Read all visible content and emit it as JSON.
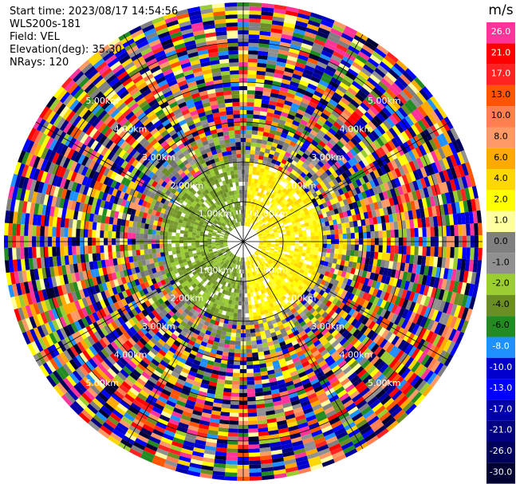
{
  "header": {
    "start_time": "Start time: 2023/08/17 14:54:56",
    "instrument": "WLS200s-181",
    "field": "Field: VEL",
    "elevation": "Elevation(deg): 35.30",
    "nrays": "NRays: 120"
  },
  "chart_data": {
    "type": "heatmap",
    "subtype": "polar-ppi",
    "title": "",
    "field": "VEL",
    "elevation_deg": 35.3,
    "nrays": 120,
    "range_rings_km": [
      1.0,
      2.0,
      3.0,
      4.0,
      5.0
    ],
    "range_ring_labels": [
      "1.00km",
      "2.00km",
      "3.00km",
      "4.00km",
      "5.00km"
    ],
    "radial_lines_deg": [
      0,
      30,
      60,
      90,
      120,
      150,
      180,
      210,
      240,
      270,
      300,
      330
    ],
    "max_range_km": 6.0,
    "colorbar": {
      "unit": "m/s",
      "tick_labels": [
        "26.0",
        "21.0",
        "17.0",
        "13.0",
        "10.0",
        "8.0",
        "6.0",
        "4.0",
        "2.0",
        "1.0",
        "0.0",
        "-1.0",
        "-2.0",
        "-4.0",
        "-6.0",
        "-8.0",
        "-10.0",
        "-13.0",
        "-17.0",
        "-21.0",
        "-26.0",
        "-30.0"
      ],
      "colors": [
        "#ff3399",
        "#ff0000",
        "#ff2222",
        "#ff5500",
        "#ff7f50",
        "#ff9966",
        "#ffaa00",
        "#ffd700",
        "#ffff00",
        "#ffffa0",
        "#808080",
        "#909090",
        "#9acd32",
        "#6b8e23",
        "#228b22",
        "#1e90ff",
        "#0000cd",
        "#0000ff",
        "#0000aa",
        "#000080",
        "#00005a",
        "#000033"
      ]
    },
    "near_field_summary": {
      "east_half_sign": "positive (yellow, ~1-2 m/s)",
      "west_half_sign": "negative (olive/green, ~-1 to -4 m/s)",
      "clear_radius_km": 2.0
    }
  }
}
